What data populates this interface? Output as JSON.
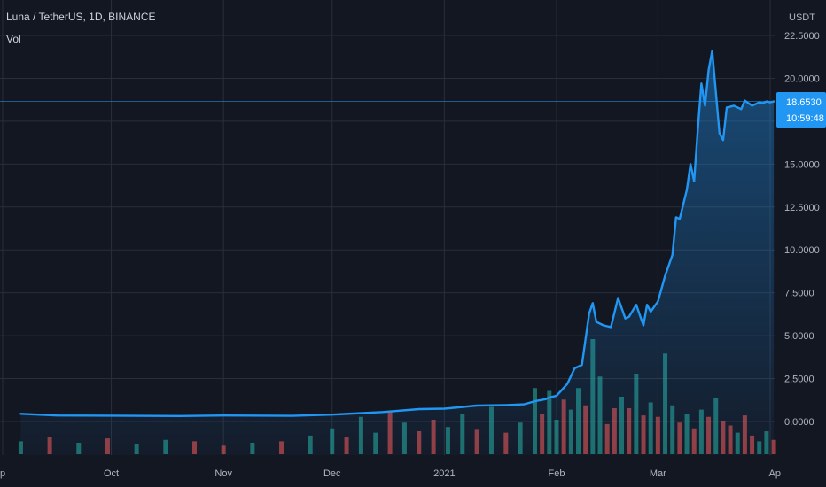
{
  "header": {
    "title": "Luna / TetherUS, 1D, BINANCE",
    "subtitle": "Vol"
  },
  "colors": {
    "background": "#131722",
    "grid": "#2a2e39",
    "line": "#2196f3",
    "volume_up": "#26a69a",
    "volume_down": "#ef5350",
    "axis_text": "#b2b5be"
  },
  "last_price": {
    "value": "18.6530",
    "countdown": "10:59:48"
  },
  "chart_data": {
    "type": "area",
    "currency_label": "USDT",
    "x_labels": [
      "p",
      "Oct",
      "Nov",
      "Dec",
      "2021",
      "Feb",
      "Mar",
      "Ap"
    ],
    "y_ticks": [
      "22.5000",
      "20.0000",
      "17.5000",
      "15.0000",
      "12.5000",
      "10.0000",
      "7.5000",
      "5.0000",
      "2.5000",
      "0.0000"
    ],
    "ylim": [
      -1.4,
      23
    ],
    "x": [
      "2020-09-06",
      "2020-09-16",
      "2020-10-01",
      "2020-10-20",
      "2020-11-01",
      "2020-11-20",
      "2020-12-01",
      "2020-12-15",
      "2020-12-25",
      "2021-01-01",
      "2021-01-10",
      "2021-01-18",
      "2021-01-23",
      "2021-01-26",
      "2021-01-29",
      "2021-01-30",
      "2021-02-01",
      "2021-02-04",
      "2021-02-06",
      "2021-02-08",
      "2021-02-10",
      "2021-02-11",
      "2021-02-12",
      "2021-02-14",
      "2021-02-16",
      "2021-02-18",
      "2021-02-20",
      "2021-02-21",
      "2021-02-23",
      "2021-02-25",
      "2021-02-26",
      "2021-02-27",
      "2021-03-01",
      "2021-03-03",
      "2021-03-05",
      "2021-03-06",
      "2021-03-07",
      "2021-03-09",
      "2021-03-10",
      "2021-03-11",
      "2021-03-12",
      "2021-03-13",
      "2021-03-14",
      "2021-03-15",
      "2021-03-16",
      "2021-03-18",
      "2021-03-19",
      "2021-03-20",
      "2021-03-22",
      "2021-03-24",
      "2021-03-25",
      "2021-03-27",
      "2021-03-28",
      "2021-03-29",
      "2021-03-30",
      "2021-03-31",
      "2021-04-01",
      "2021-04-02"
    ],
    "values": [
      0.45,
      0.35,
      0.34,
      0.32,
      0.35,
      0.33,
      0.4,
      0.55,
      0.72,
      0.75,
      0.93,
      0.96,
      1.0,
      1.18,
      1.3,
      1.4,
      1.5,
      2.2,
      3.1,
      3.3,
      6.3,
      6.9,
      5.8,
      5.6,
      5.5,
      7.2,
      6.0,
      6.1,
      6.8,
      5.6,
      6.8,
      6.4,
      7.0,
      8.5,
      9.7,
      11.9,
      11.8,
      13.5,
      15.0,
      14.0,
      17.0,
      19.7,
      18.4,
      20.5,
      21.6,
      16.8,
      16.4,
      18.3,
      18.4,
      18.2,
      18.7,
      18.4,
      18.5,
      18.6,
      18.55,
      18.65,
      18.6,
      18.65
    ],
    "volume_note": "volume bars shown at bottom (up = teal, down = red)",
    "volume": {
      "x": [
        "2020-09-06",
        "2020-09-14",
        "2020-09-22",
        "2020-09-30",
        "2020-10-08",
        "2020-10-16",
        "2020-10-24",
        "2020-11-01",
        "2020-11-09",
        "2020-11-17",
        "2020-11-25",
        "2020-12-01",
        "2020-12-05",
        "2020-12-09",
        "2020-12-13",
        "2020-12-17",
        "2020-12-21",
        "2020-12-25",
        "2020-12-29",
        "2021-01-02",
        "2021-01-06",
        "2021-01-10",
        "2021-01-14",
        "2021-01-18",
        "2021-01-22",
        "2021-01-26",
        "2021-01-28",
        "2021-01-30",
        "2021-02-01",
        "2021-02-03",
        "2021-02-05",
        "2021-02-07",
        "2021-02-09",
        "2021-02-11",
        "2021-02-13",
        "2021-02-15",
        "2021-02-17",
        "2021-02-19",
        "2021-02-21",
        "2021-02-23",
        "2021-02-25",
        "2021-02-27",
        "2021-03-01",
        "2021-03-03",
        "2021-03-05",
        "2021-03-07",
        "2021-03-09",
        "2021-03-11",
        "2021-03-13",
        "2021-03-15",
        "2021-03-17",
        "2021-03-19",
        "2021-03-21",
        "2021-03-23",
        "2021-03-25",
        "2021-03-27",
        "2021-03-29",
        "2021-03-31",
        "2021-04-02"
      ],
      "values": [
        0.9,
        1.2,
        0.8,
        1.1,
        0.7,
        1.0,
        0.9,
        0.6,
        0.8,
        0.9,
        1.3,
        1.8,
        1.2,
        2.6,
        1.5,
        3.0,
        2.2,
        1.6,
        2.4,
        1.9,
        2.8,
        1.7,
        3.3,
        1.5,
        2.2,
        4.6,
        2.8,
        4.4,
        2.4,
        3.8,
        3.1,
        4.6,
        3.4,
        8.0,
        5.4,
        2.1,
        3.2,
        4.0,
        3.2,
        5.6,
        2.7,
        3.6,
        2.6,
        7.0,
        3.4,
        2.2,
        2.8,
        1.8,
        3.1,
        2.6,
        3.9,
        2.3,
        2.0,
        1.5,
        2.7,
        1.3,
        0.9,
        1.6,
        1.0
      ],
      "direction": [
        "up",
        "down",
        "up",
        "down",
        "up",
        "up",
        "down",
        "down",
        "up",
        "down",
        "up",
        "up",
        "down",
        "up",
        "up",
        "down",
        "up",
        "down",
        "down",
        "up",
        "up",
        "down",
        "up",
        "down",
        "up",
        "up",
        "down",
        "up",
        "up",
        "down",
        "up",
        "up",
        "down",
        "up",
        "up",
        "down",
        "down",
        "up",
        "down",
        "up",
        "down",
        "up",
        "down",
        "up",
        "up",
        "down",
        "up",
        "down",
        "up",
        "down",
        "up",
        "down",
        "down",
        "up",
        "down",
        "down",
        "up",
        "up",
        "down"
      ]
    }
  }
}
